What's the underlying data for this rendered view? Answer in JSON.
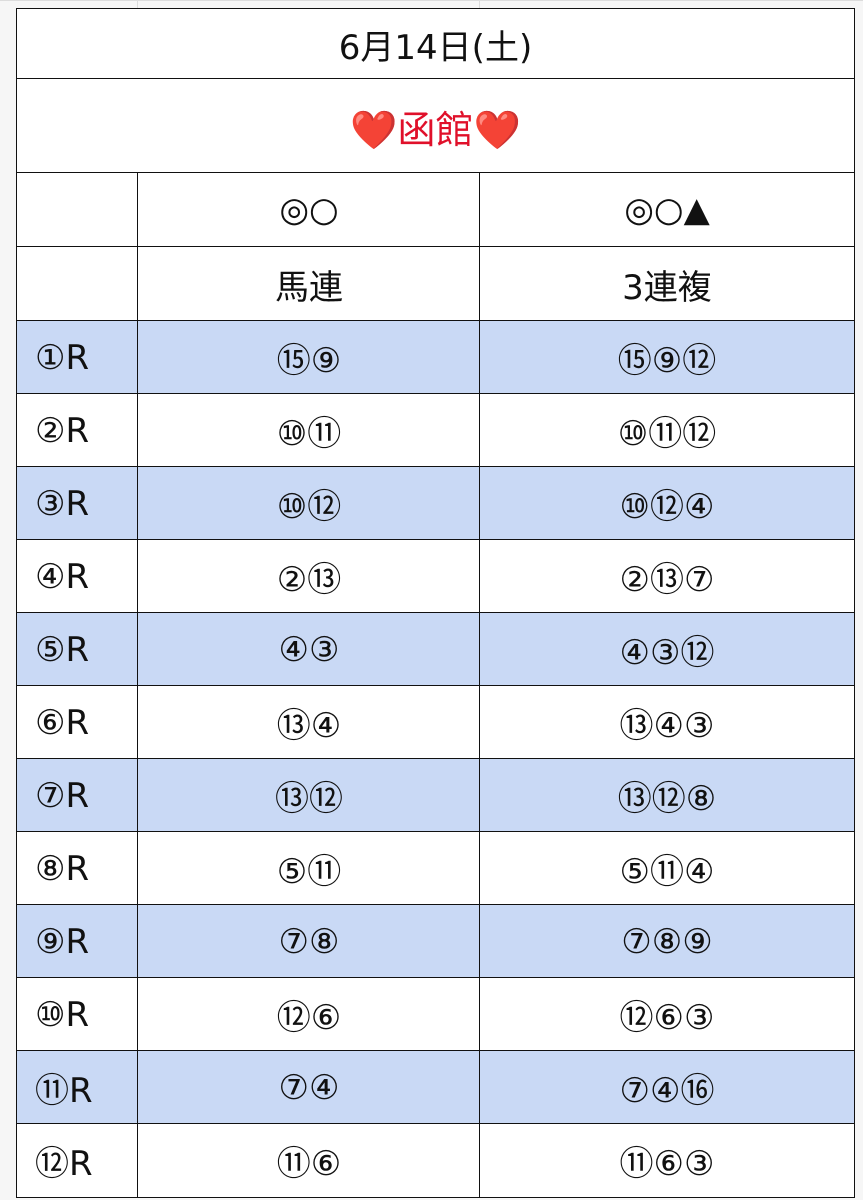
{
  "header": {
    "title": "6月14日(土)",
    "venue": "❤️函館❤️"
  },
  "table": {
    "columns": {
      "marks": [
        "◎○",
        "◎○▲"
      ],
      "bet_types": [
        "馬連",
        "3連複"
      ]
    },
    "rows": [
      [
        "①R",
        "⑮⑨",
        "⑮⑨⑫"
      ],
      [
        "②R",
        "⑩⑪",
        "⑩⑪⑫"
      ],
      [
        "③R",
        "⑩⑫",
        "⑩⑫④"
      ],
      [
        "④R",
        "②⑬",
        "②⑬⑦"
      ],
      [
        "⑤R",
        "④③",
        "④③⑫"
      ],
      [
        "⑥R",
        "⑬④",
        "⑬④③"
      ],
      [
        "⑦R",
        "⑬⑫",
        "⑬⑫⑧"
      ],
      [
        "⑧R",
        "⑤⑪",
        "⑤⑪④"
      ],
      [
        "⑨R",
        "⑦⑧",
        "⑦⑧⑨"
      ],
      [
        "⑩R",
        "⑫⑥",
        "⑫⑥③"
      ],
      [
        "⑪R",
        "⑦④",
        "⑦④⑯"
      ],
      [
        "⑫R",
        "⑪⑥",
        "⑪⑥③"
      ]
    ]
  }
}
